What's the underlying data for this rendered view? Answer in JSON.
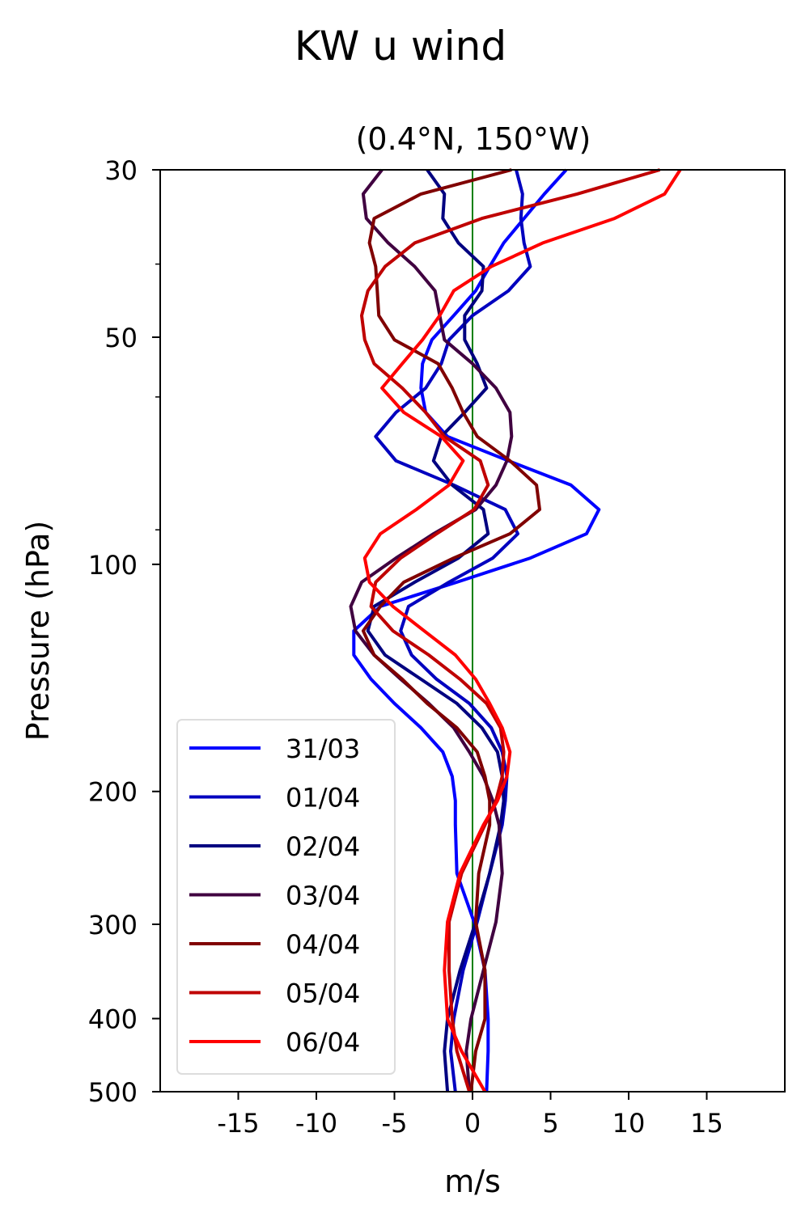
{
  "chart_data": {
    "type": "line",
    "title": "KW u wind",
    "subtitle": "(0.4°N, 150°W)",
    "xlabel": "m/s",
    "ylabel": "Pressure (hPa)",
    "xlim": [
      -20,
      20
    ],
    "ylim": [
      500,
      30
    ],
    "yscale": "log",
    "xticks": [
      -15,
      -10,
      -5,
      0,
      5,
      10,
      15
    ],
    "xtick_labels": [
      "-15",
      "-10",
      "-5",
      "0",
      "5",
      "10",
      "15"
    ],
    "yticks": [
      30,
      50,
      100,
      200,
      300,
      400,
      500
    ],
    "ytick_labels": [
      "30",
      "50",
      "100",
      "200",
      "300",
      "400",
      "500"
    ],
    "yminor_ticks": [
      40,
      60,
      90
    ],
    "reference_line": {
      "x": 0,
      "color": "#008000"
    },
    "legend_position": "lower-left",
    "grid": false,
    "pressure": [
      30,
      32.3,
      34.8,
      37.5,
      40.3,
      43.4,
      46.8,
      50.4,
      54.2,
      58.4,
      62.9,
      67.7,
      72.9,
      78.5,
      84.6,
      91.1,
      98.1,
      105.6,
      113.7,
      122.5,
      131.9,
      142.0,
      152.9,
      164.7,
      177.3,
      191.0,
      205.7,
      221.5,
      256.8,
      297.8,
      345.3,
      400.5,
      441.9,
      500
    ],
    "series": [
      {
        "name": "31/03",
        "color": "#0000ff",
        "values": [
          6.0,
          4.6,
          3.3,
          2.0,
          1.1,
          0.2,
          -1.2,
          -2.6,
          -3.2,
          -3.3,
          -3.0,
          -1.6,
          2.3,
          6.3,
          8.1,
          7.3,
          3.7,
          -1.0,
          -5.9,
          -7.6,
          -7.6,
          -6.5,
          -5.0,
          -3.3,
          -1.9,
          -1.3,
          -1.1,
          -1.1,
          -1.0,
          0.1,
          0.8,
          1.0,
          1.0,
          0.9
        ]
      },
      {
        "name": "01/04",
        "color": "#0000bf",
        "values": [
          2.8,
          3.2,
          3.1,
          3.3,
          3.7,
          2.3,
          0.0,
          -1.5,
          -2.0,
          -3.0,
          -4.9,
          -6.2,
          -4.9,
          -1.2,
          2.1,
          2.9,
          1.3,
          -1.5,
          -4.1,
          -4.6,
          -3.9,
          -2.3,
          -0.2,
          1.2,
          1.9,
          2.2,
          2.1,
          1.9,
          1.1,
          0.3,
          -0.6,
          -1.2,
          -1.4,
          -1.1
        ]
      },
      {
        "name": "02/04",
        "color": "#000080",
        "values": [
          -2.9,
          -1.8,
          -1.9,
          -0.9,
          0.7,
          0.6,
          -0.5,
          -0.5,
          0.3,
          0.9,
          -0.5,
          -2.0,
          -2.5,
          -1.3,
          0.7,
          1.0,
          -0.9,
          -3.7,
          -6.3,
          -6.7,
          -5.6,
          -3.3,
          -1.0,
          0.6,
          1.6,
          1.9,
          2.0,
          1.8,
          1.1,
          0.2,
          -0.8,
          -1.6,
          -1.8,
          -1.6
        ]
      },
      {
        "name": "03/04",
        "color": "#400040",
        "values": [
          -5.8,
          -7.0,
          -6.8,
          -5.4,
          -3.7,
          -2.4,
          -2.1,
          -1.8,
          0.0,
          1.5,
          2.4,
          2.5,
          2.2,
          1.5,
          0.2,
          -2.5,
          -4.9,
          -7.1,
          -7.8,
          -7.5,
          -6.3,
          -4.6,
          -2.8,
          -1.2,
          -0.2,
          0.7,
          1.3,
          1.7,
          1.9,
          1.5,
          0.7,
          -0.1,
          -0.4,
          -0.2
        ]
      },
      {
        "name": "04/04",
        "color": "#800000",
        "values": [
          2.5,
          -3.3,
          -6.3,
          -6.6,
          -6.2,
          -6.1,
          -6.0,
          -5.0,
          -2.2,
          -1.3,
          -0.6,
          0.3,
          2.4,
          4.1,
          4.3,
          2.4,
          -1.2,
          -4.4,
          -5.9,
          -7.0,
          -6.3,
          -4.5,
          -2.9,
          -1.0,
          0.3,
          0.8,
          1.1,
          1.1,
          0.4,
          0.2,
          0.8,
          0.8,
          0.2,
          -0.1
        ]
      },
      {
        "name": "05/04",
        "color": "#bf0000",
        "values": [
          12.0,
          6.7,
          0.6,
          -3.7,
          -5.6,
          -6.7,
          -7.1,
          -6.9,
          -6.3,
          -4.5,
          -3.0,
          -1.8,
          0.5,
          1.0,
          0.1,
          -2.3,
          -4.6,
          -6.2,
          -6.5,
          -5.1,
          -2.8,
          -0.8,
          0.9,
          1.8,
          2.0,
          1.9,
          1.5,
          0.8,
          -0.7,
          -1.5,
          -1.5,
          -1.3,
          -1.0,
          -0.2
        ]
      },
      {
        "name": "06/04",
        "color": "#ff0000",
        "values": [
          13.3,
          12.3,
          9.1,
          4.5,
          1.2,
          -1.2,
          -2.1,
          -3.2,
          -4.5,
          -5.8,
          -4.4,
          -2.0,
          -0.6,
          -1.5,
          -3.6,
          -5.9,
          -6.9,
          -6.6,
          -5.1,
          -3.1,
          -1.1,
          0.2,
          1.1,
          1.9,
          2.4,
          2.2,
          1.6,
          0.7,
          -0.8,
          -1.6,
          -1.8,
          -1.6,
          -0.7,
          0.8
        ]
      }
    ]
  }
}
